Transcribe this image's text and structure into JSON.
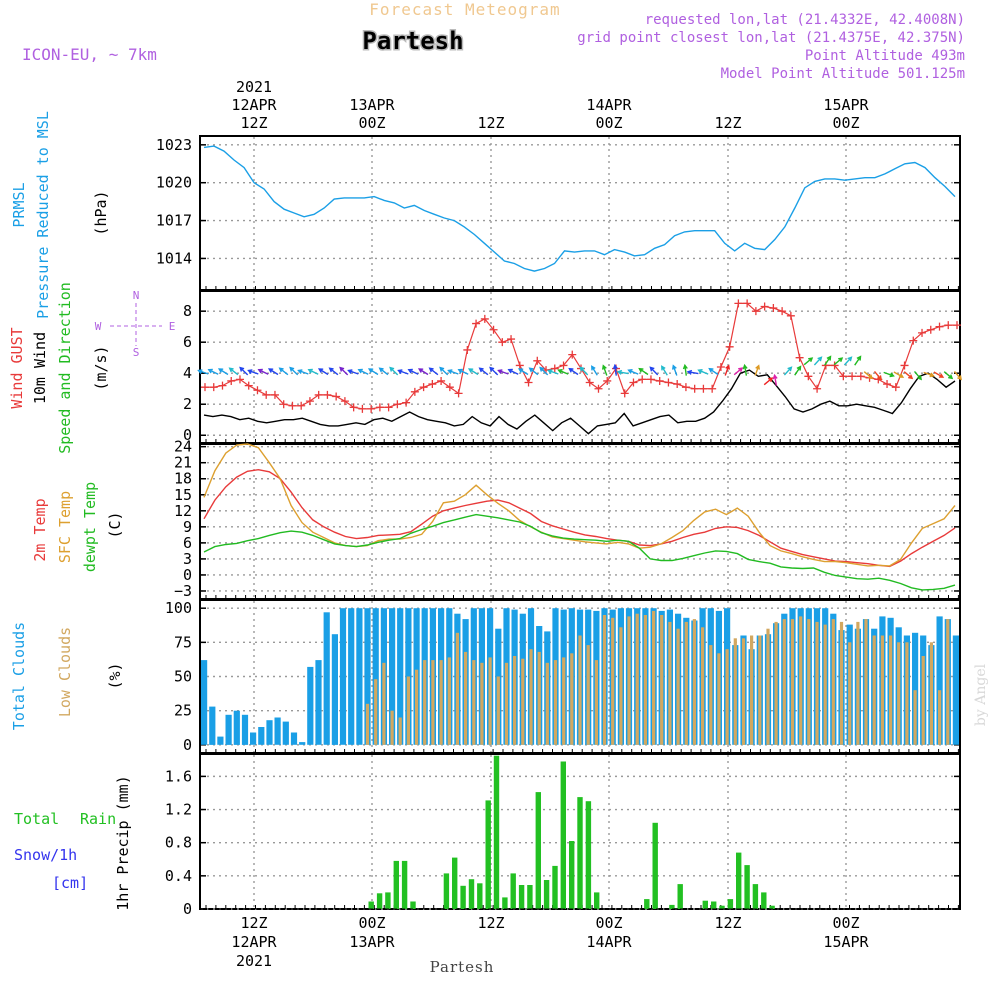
{
  "header": {
    "banner": "Forecast Meteogram",
    "location": "Partesh",
    "model": "ICON-EU, ~ 7km",
    "requested": "requested lon,lat (21.4332E, 42.4008N)",
    "grid": "grid point closest lon,lat (21.4375E, 42.375N)",
    "point_alt": "Point Altitude 493m",
    "model_alt": "Model Point Altitude 501.125m"
  },
  "footer": {
    "location": "Partesh",
    "credit": "by Angel"
  },
  "colors": {
    "pressure": "#1a9fe6",
    "gust": "#e83a3a",
    "wind": "#000000",
    "direction": "#22bb22",
    "temp": "#e83a3a",
    "sfc": "#dda030",
    "dewpt": "#22bb22",
    "total_cloud": "#1a9fe6",
    "low_cloud": "#d2a860",
    "rain": "#22c022",
    "snow": "#3333ee",
    "header_purple": "#b060e0",
    "banner_orange": "#f0c890"
  },
  "chart_data": [
    {
      "type": "line",
      "title": "PRMSL Pressure Reduced to MSL",
      "ylabel": "(hPa)",
      "ylim": [
        1011.5,
        1023.7
      ],
      "yticks": [
        1014,
        1017,
        1020,
        1023
      ],
      "series": [
        {
          "name": "PRMSL",
          "color": "#1a9fe6",
          "values": [
            1022.8,
            1022.9,
            1022.5,
            1021.8,
            1021.2,
            1020.0,
            1019.5,
            1018.5,
            1017.9,
            1017.6,
            1017.3,
            1017.5,
            1018.0,
            1018.7,
            1018.8,
            1018.8,
            1018.8,
            1018.9,
            1018.6,
            1018.4,
            1018.0,
            1018.2,
            1017.8,
            1017.5,
            1017.2,
            1017.0,
            1016.5,
            1015.9,
            1015.2,
            1014.5,
            1013.8,
            1013.6,
            1013.2,
            1013.0,
            1013.2,
            1013.6,
            1014.6,
            1014.5,
            1014.6,
            1014.6,
            1014.3,
            1014.7,
            1014.5,
            1014.2,
            1014.3,
            1014.8,
            1015.1,
            1015.8,
            1016.1,
            1016.2,
            1016.2,
            1016.2,
            1015.2,
            1014.6,
            1015.2,
            1014.8,
            1014.7,
            1015.5,
            1016.5,
            1018.0,
            1019.6,
            1020.1,
            1020.3,
            1020.3,
            1020.2,
            1020.3,
            1020.4,
            1020.4,
            1020.7,
            1021.1,
            1021.5,
            1021.6,
            1021.2,
            1020.4,
            1019.7,
            1018.9
          ]
        }
      ]
    },
    {
      "type": "line",
      "title": "Wind GUST / 10m Wind Speed and Direction",
      "ylabel": "(m/s)",
      "compass": [
        "N",
        "W",
        "E",
        "S"
      ],
      "ylim": [
        -0.5,
        9.3
      ],
      "yticks": [
        0,
        2,
        4,
        6,
        8
      ],
      "series": [
        {
          "name": "Wind GUST",
          "color": "#e83a3a",
          "values": [
            3.1,
            3.1,
            3.2,
            3.5,
            3.6,
            3.2,
            2.9,
            2.6,
            2.6,
            2.0,
            1.9,
            1.9,
            2.2,
            2.6,
            2.6,
            2.5,
            2.2,
            1.8,
            1.7,
            1.7,
            1.8,
            1.8,
            2.0,
            2.1,
            2.8,
            3.1,
            3.3,
            3.5,
            3.1,
            2.7,
            5.5,
            7.2,
            7.5,
            6.8,
            6.0,
            6.2,
            4.5,
            3.4,
            4.8,
            4.2,
            4.3,
            4.5,
            5.2,
            4.3,
            3.4,
            3.0,
            3.5,
            4.3,
            2.7,
            3.4,
            3.6,
            3.6,
            3.5,
            3.4,
            3.3,
            3.1,
            3.0,
            3.0,
            3.0,
            4.4,
            5.7,
            8.5,
            8.5,
            8.0,
            8.3,
            8.2,
            8.0,
            7.7,
            5.0,
            3.8,
            3.0,
            4.5,
            4.5,
            3.8,
            3.8,
            3.8,
            3.7,
            3.6,
            3.3,
            3.1,
            4.5,
            6.1,
            6.6,
            6.8,
            7.0,
            7.1,
            7.1
          ],
          "x_start": 0,
          "x_step": 1
        },
        {
          "name": "10m Wind",
          "color": "#000000",
          "values": [
            1.3,
            1.2,
            1.3,
            1.2,
            1.0,
            1.1,
            0.9,
            0.8,
            0.9,
            1.0,
            1.0,
            1.1,
            0.9,
            0.7,
            0.6,
            0.6,
            0.7,
            0.8,
            0.7,
            1.0,
            1.1,
            0.9,
            1.2,
            1.5,
            1.2,
            1.0,
            0.9,
            0.8,
            0.6,
            0.7,
            1.2,
            0.8,
            0.6,
            1.2,
            0.7,
            0.4,
            0.9,
            1.3,
            0.8,
            0.3,
            0.8,
            1.1,
            0.6,
            0.1,
            0.6,
            0.7,
            0.8,
            1.4,
            0.6,
            0.8,
            1.0,
            1.2,
            1.3,
            0.8,
            0.9,
            0.9,
            1.1,
            1.5,
            2.2,
            3.0,
            4.0,
            4.2,
            3.8,
            3.9,
            3.2,
            2.5,
            1.7,
            1.5,
            1.7,
            2.0,
            2.2,
            1.9,
            1.9,
            2.0,
            1.9,
            1.8,
            1.6,
            1.4,
            2.1,
            3.0,
            3.8,
            4.0,
            3.6,
            3.1,
            3.5
          ]
        }
      ]
    },
    {
      "type": "line",
      "title": "2m Temp / SFC Temp / dewpt Temp",
      "ylabel": "(C)",
      "ylim": [
        -4.5,
        24.5
      ],
      "yticks": [
        -3,
        0,
        3,
        6,
        9,
        12,
        15,
        18,
        21,
        24
      ],
      "series": [
        {
          "name": "2m Temp",
          "color": "#e83a3a",
          "values": [
            10.5,
            14.0,
            16.5,
            18.3,
            19.4,
            19.7,
            19.3,
            18.0,
            15.5,
            12.6,
            10.3,
            9.0,
            8.0,
            7.2,
            6.8,
            7.0,
            7.4,
            7.5,
            7.6,
            8.1,
            9.5,
            11.0,
            12.0,
            12.5,
            13.0,
            13.4,
            13.8,
            14.0,
            13.5,
            12.5,
            11.5,
            10.0,
            9.2,
            8.6,
            8.0,
            7.5,
            7.2,
            6.8,
            6.5,
            6.3,
            5.6,
            5.5,
            5.8,
            6.3,
            7.0,
            7.6,
            8.0,
            8.7,
            9.0,
            8.9,
            8.3,
            7.4,
            6.2,
            5.0,
            4.4,
            3.8,
            3.4,
            3.0,
            2.6,
            2.5,
            2.3,
            2.1,
            1.8,
            1.6,
            2.6,
            4.0,
            5.2,
            6.3,
            7.4,
            8.8
          ]
        },
        {
          "name": "SFC Temp",
          "color": "#dda030",
          "values": [
            14.5,
            19.5,
            22.8,
            24.3,
            24.5,
            23.8,
            21.0,
            18.0,
            13.0,
            9.8,
            8.0,
            7.0,
            6.0,
            5.5,
            5.3,
            5.5,
            6.4,
            6.7,
            6.7,
            7.0,
            7.6,
            10.0,
            13.5,
            13.8,
            15.0,
            16.8,
            15.0,
            13.4,
            12.0,
            10.2,
            9.0,
            8.0,
            7.1,
            6.8,
            6.5,
            6.2,
            6.0,
            5.8,
            6.1,
            5.8,
            5.0,
            5.2,
            5.8,
            7.0,
            8.3,
            10.2,
            11.8,
            12.3,
            11.3,
            12.5,
            11.0,
            8.0,
            5.5,
            4.5,
            4.0,
            3.4,
            2.9,
            2.5,
            2.5,
            2.3,
            2.0,
            1.7,
            1.8,
            1.7,
            2.9,
            6.0,
            8.7,
            9.6,
            10.5,
            13.0
          ]
        },
        {
          "name": "dewpt Temp",
          "color": "#22bb22",
          "values": [
            4.3,
            5.3,
            5.7,
            5.9,
            6.4,
            6.8,
            7.4,
            7.9,
            8.2,
            8.0,
            7.4,
            6.6,
            5.8,
            5.5,
            5.3,
            5.6,
            6.1,
            6.5,
            6.8,
            7.8,
            8.5,
            9.1,
            9.8,
            10.3,
            10.8,
            11.3,
            11.0,
            10.7,
            10.3,
            9.9,
            9.1,
            7.9,
            7.3,
            6.9,
            6.7,
            6.6,
            6.5,
            6.3,
            6.5,
            6.3,
            5.0,
            3.0,
            2.7,
            2.7,
            3.1,
            3.6,
            4.1,
            4.5,
            4.4,
            4.0,
            2.9,
            2.5,
            2.2,
            1.5,
            1.3,
            1.2,
            1.3,
            0.5,
            -0.1,
            -0.4,
            -0.7,
            -0.8,
            -0.6,
            -1.0,
            -1.6,
            -2.4,
            -2.8,
            -2.7,
            -2.5,
            -1.9
          ]
        }
      ]
    },
    {
      "type": "bar",
      "title": "Total Clouds / Low Clouds",
      "ylabel": "(%)",
      "ylim": [
        -6,
        106
      ],
      "yticks": [
        0,
        25,
        50,
        75,
        100
      ],
      "series": [
        {
          "name": "Total Clouds",
          "color": "#1a9fe6",
          "values": [
            62,
            28,
            6,
            22,
            25,
            22,
            9,
            13,
            18,
            20,
            17,
            9,
            2,
            57,
            62,
            97,
            81,
            100,
            100,
            100,
            100,
            100,
            100,
            100,
            100,
            100,
            100,
            100,
            100,
            100,
            100,
            96,
            92,
            100,
            100,
            100,
            85,
            100,
            99,
            96,
            100,
            87,
            83,
            100,
            99,
            100,
            99,
            99,
            98,
            100,
            99,
            100,
            100,
            100,
            100,
            100,
            98,
            99,
            96,
            93,
            91,
            100,
            100,
            98,
            100,
            73,
            80,
            70,
            80,
            81,
            89,
            96,
            100,
            100,
            100,
            100,
            100,
            96,
            84,
            88,
            85,
            92,
            85,
            94,
            93,
            86,
            80,
            82,
            80,
            73,
            94,
            92,
            80
          ]
        },
        {
          "name": "Low Clouds",
          "color": "#d2a860",
          "values": [
            0,
            0,
            0,
            0,
            0,
            0,
            0,
            0,
            0,
            0,
            0,
            0,
            0,
            0,
            0,
            0,
            0,
            0,
            0,
            0,
            30,
            48,
            60,
            25,
            20,
            50,
            55,
            62,
            62,
            62,
            64,
            82,
            68,
            62,
            60,
            64,
            50,
            60,
            65,
            63,
            70,
            68,
            60,
            62,
            64,
            67,
            80,
            73,
            62,
            95,
            93,
            86,
            94,
            96,
            95,
            98,
            95,
            90,
            85,
            90,
            92,
            86,
            73,
            67,
            70,
            78,
            78,
            80,
            80,
            85,
            90,
            92,
            92,
            94,
            92,
            90,
            88,
            92,
            90,
            75,
            90,
            92,
            80,
            80,
            80,
            75,
            75,
            40,
            65,
            75,
            40,
            92,
            0
          ]
        }
      ]
    },
    {
      "type": "bar",
      "title": "Total Rain / Snow/1h [cm]",
      "ylabel": "1hr Precip (mm)",
      "ylim": [
        0,
        1.87
      ],
      "yticks": [
        0,
        0.4,
        0.8,
        1.2,
        1.6
      ],
      "ytick_labels": [
        "0",
        "0.4",
        "0.8",
        "1.2",
        "1.6"
      ],
      "series": [
        {
          "name": "Total Rain",
          "color": "#22c022",
          "values": [
            0,
            0,
            0,
            0,
            0,
            0,
            0,
            0,
            0,
            0,
            0,
            0,
            0,
            0,
            0,
            0,
            0,
            0,
            0,
            0,
            0.09,
            0.19,
            0.2,
            0.58,
            0.58,
            0.09,
            0,
            0,
            0,
            0.43,
            0.62,
            0.28,
            0.36,
            0.31,
            1.31,
            1.85,
            0.14,
            0.43,
            0.29,
            0.29,
            1.41,
            0.35,
            0.52,
            1.78,
            0.82,
            1.35,
            1.3,
            0.2,
            0,
            0,
            0,
            0,
            0,
            0.12,
            1.04,
            0,
            0.05,
            0.3,
            0,
            0,
            0.1,
            0.09,
            0.04,
            0.12,
            0.68,
            0.53,
            0.3,
            0.2,
            0.04,
            0,
            0,
            0,
            0,
            0,
            0,
            0,
            0,
            0,
            0,
            0,
            0,
            0,
            0,
            0,
            0,
            0,
            0,
            0,
            0,
            0,
            0
          ],
          "bar_start": 27
        },
        {
          "name": "Snow/1h",
          "color": "#3333ee",
          "values": []
        }
      ]
    }
  ],
  "time_axis": {
    "top": [
      {
        "line1": "2021",
        "line2": "12APR",
        "line3": "12Z"
      },
      {
        "line1": "",
        "line2": "13APR",
        "line3": "00Z"
      },
      {
        "line1": "",
        "line2": "",
        "line3": "12Z"
      },
      {
        "line1": "",
        "line2": "14APR",
        "line3": "00Z"
      },
      {
        "line1": "",
        "line2": "",
        "line3": "12Z"
      },
      {
        "line1": "",
        "line2": "15APR",
        "line3": "00Z"
      }
    ],
    "bottom": [
      {
        "line1": "12Z",
        "line2": "12APR",
        "line3": "2021"
      },
      {
        "line1": "00Z",
        "line2": "13APR",
        "line3": ""
      },
      {
        "line1": "12Z",
        "line2": "",
        "line3": ""
      },
      {
        "line1": "00Z",
        "line2": "14APR",
        "line3": ""
      },
      {
        "line1": "12Z",
        "line2": "",
        "line3": ""
      },
      {
        "line1": "00Z",
        "line2": "15APR",
        "line3": ""
      }
    ]
  },
  "panel_labels": {
    "p0": {
      "a": "PRMSL",
      "b": "Pressure Reduced to MSL",
      "c": "(hPa)"
    },
    "p1": {
      "a": "Wind GUST",
      "b": "10m Wind",
      "c": "Speed and Direction",
      "d": "(m/s)"
    },
    "p2": {
      "a": "2m Temp",
      "b": "SFC Temp",
      "c": "dewpt Temp",
      "d": "(C)"
    },
    "p3": {
      "a": "Total Clouds",
      "b": "Low Clouds",
      "c": "(%)"
    },
    "p4": {
      "a": "Total",
      "a2": "Rain",
      "b": "Snow/1h",
      "c": "[cm]",
      "d": "1hr Precip (mm)"
    }
  }
}
